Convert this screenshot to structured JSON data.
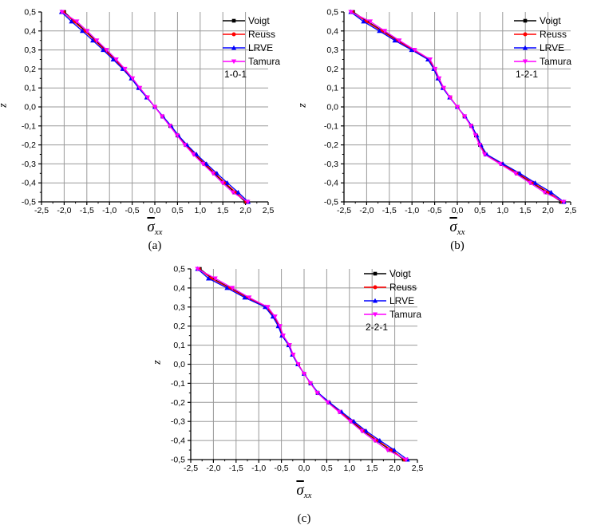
{
  "decimal_separator": ",",
  "colors": {
    "background": "#ffffff",
    "grid": "#9a9a9a",
    "axis": "#000000",
    "voigt": "#000000",
    "reuss": "#ff0000",
    "lrve": "#0000ff",
    "tamura": "#ff00ff"
  },
  "chart_data": [
    {
      "id": "a",
      "type": "line",
      "caption": "(a)",
      "group_label": "1-0-1",
      "xlabel": {
        "base": "σ",
        "overbar": true,
        "sub": "xx"
      },
      "ylabel": "z",
      "xlim": [
        -2.5,
        2.5
      ],
      "ylim": [
        -0.5,
        0.5
      ],
      "grid": true,
      "legend_position": "top-right",
      "x_tick_values": [
        -2.5,
        -2.0,
        -1.5,
        -1.0,
        -0.5,
        0.0,
        0.5,
        1.0,
        1.5,
        2.0,
        2.5
      ],
      "x_tick_labels": [
        "-2,5",
        "-2,0",
        "-1,5",
        "-1,0",
        "-0,5",
        "0,0",
        "0,5",
        "1,0",
        "1,5",
        "2,0",
        "2,5"
      ],
      "y_tick_values": [
        0.5,
        0.4,
        0.3,
        0.2,
        0.1,
        0.0,
        -0.1,
        -0.2,
        -0.3,
        -0.4,
        -0.5
      ],
      "y_tick_labels": [
        "0,5",
        "0,4",
        "0,3",
        "0,2",
        "0,1",
        "0,0",
        "-0,1",
        "-0,2",
        "-0,3",
        "-0,4",
        "-0,5"
      ],
      "x_minor_step": 0.25,
      "y_minor_step": 0.05,
      "z": [
        0.5,
        0.45,
        0.4,
        0.35,
        0.3,
        0.25,
        0.2,
        0.15,
        0.1,
        0.05,
        0.0,
        -0.05,
        -0.1,
        -0.15,
        -0.2,
        -0.25,
        -0.3,
        -0.35,
        -0.4,
        -0.45,
        -0.5
      ],
      "series": [
        {
          "name": "Voigt",
          "color": "#000000",
          "marker": "square",
          "x": [
            -2.0,
            -1.76,
            -1.53,
            -1.31,
            -1.09,
            -0.88,
            -0.68,
            -0.5,
            -0.34,
            -0.17,
            0.0,
            0.17,
            0.34,
            0.5,
            0.68,
            0.88,
            1.09,
            1.31,
            1.53,
            1.76,
            2.0
          ]
        },
        {
          "name": "Reuss",
          "color": "#ff0000",
          "marker": "circle",
          "x": [
            -2.02,
            -1.79,
            -1.55,
            -1.33,
            -1.11,
            -0.89,
            -0.69,
            -0.51,
            -0.35,
            -0.17,
            0.0,
            0.17,
            0.35,
            0.51,
            0.69,
            0.89,
            1.11,
            1.33,
            1.55,
            1.79,
            2.02
          ]
        },
        {
          "name": "LRVE",
          "color": "#0000ff",
          "marker": "triangle-up",
          "x": [
            -2.06,
            -1.84,
            -1.6,
            -1.37,
            -1.14,
            -0.92,
            -0.71,
            -0.52,
            -0.36,
            -0.18,
            0.0,
            0.18,
            0.36,
            0.52,
            0.71,
            0.92,
            1.14,
            1.37,
            1.6,
            1.84,
            2.06
          ]
        },
        {
          "name": "Tamura",
          "color": "#ff00ff",
          "marker": "triangle-down",
          "x": [
            -2.05,
            -1.72,
            -1.49,
            -1.28,
            -1.06,
            -0.85,
            -0.66,
            -0.49,
            -0.33,
            -0.16,
            0.0,
            0.16,
            0.33,
            0.49,
            0.66,
            0.85,
            1.06,
            1.28,
            1.49,
            1.72,
            2.05
          ]
        }
      ]
    },
    {
      "id": "b",
      "type": "line",
      "caption": "(b)",
      "group_label": "1-2-1",
      "xlabel": {
        "base": "σ",
        "overbar": true,
        "sub": "xx"
      },
      "ylabel": "z",
      "xlim": [
        -2.5,
        2.5
      ],
      "ylim": [
        -0.5,
        0.5
      ],
      "grid": true,
      "legend_position": "top-right",
      "x_tick_values": [
        -2.5,
        -2.0,
        -1.5,
        -1.0,
        -0.5,
        0.0,
        0.5,
        1.0,
        1.5,
        2.0,
        2.5
      ],
      "x_tick_labels": [
        "-2,5",
        "-2,0",
        "-1,5",
        "-1,0",
        "-0,5",
        "0,0",
        "0,5",
        "1,0",
        "1,5",
        "2,0",
        "2,5"
      ],
      "y_tick_values": [
        0.5,
        0.4,
        0.3,
        0.2,
        0.1,
        0.0,
        -0.1,
        -0.2,
        -0.3,
        -0.4,
        -0.5
      ],
      "y_tick_labels": [
        "0,5",
        "0,4",
        "0,3",
        "0,2",
        "0,1",
        "0,0",
        "-0,1",
        "-0,2",
        "-0,3",
        "-0,4",
        "-0,5"
      ],
      "x_minor_step": 0.25,
      "y_minor_step": 0.05,
      "z": [
        0.5,
        0.45,
        0.4,
        0.35,
        0.3,
        0.25,
        0.2,
        0.15,
        0.1,
        0.05,
        0.0,
        -0.05,
        -0.1,
        -0.15,
        -0.2,
        -0.25,
        -0.3,
        -0.35,
        -0.4,
        -0.45,
        -0.5
      ],
      "series": [
        {
          "name": "Voigt",
          "color": "#000000",
          "marker": "square",
          "x": [
            -2.3,
            -1.98,
            -1.65,
            -1.32,
            -0.97,
            -0.62,
            -0.5,
            -0.41,
            -0.31,
            -0.16,
            0.0,
            0.16,
            0.31,
            0.41,
            0.5,
            0.62,
            0.97,
            1.32,
            1.65,
            1.98,
            2.3
          ]
        },
        {
          "name": "Reuss",
          "color": "#ff0000",
          "marker": "circle",
          "x": [
            -2.32,
            -2.01,
            -1.67,
            -1.34,
            -0.98,
            -0.63,
            -0.51,
            -0.42,
            -0.31,
            -0.16,
            0.0,
            0.16,
            0.31,
            0.42,
            0.51,
            0.63,
            0.98,
            1.34,
            1.67,
            2.01,
            2.32
          ]
        },
        {
          "name": "LRVE",
          "color": "#0000ff",
          "marker": "triangle-up",
          "x": [
            -2.35,
            -2.07,
            -1.72,
            -1.38,
            -1.01,
            -0.65,
            -0.52,
            -0.43,
            -0.32,
            -0.17,
            0.0,
            0.17,
            0.32,
            0.43,
            0.52,
            0.65,
            1.01,
            1.38,
            1.72,
            2.07,
            2.35
          ]
        },
        {
          "name": "Tamura",
          "color": "#ff00ff",
          "marker": "triangle-down",
          "x": [
            -2.35,
            -1.92,
            -1.6,
            -1.28,
            -0.94,
            -0.6,
            -0.49,
            -0.4,
            -0.3,
            -0.16,
            0.0,
            0.16,
            0.3,
            0.4,
            0.49,
            0.6,
            0.94,
            1.28,
            1.6,
            1.92,
            2.35
          ]
        }
      ]
    },
    {
      "id": "c",
      "type": "line",
      "caption": "(c)",
      "group_label": "2-2-1",
      "xlabel": {
        "base": "σ",
        "overbar": true,
        "sub": "xx"
      },
      "ylabel": "z",
      "xlim": [
        -2.5,
        2.5
      ],
      "ylim": [
        -0.5,
        0.5
      ],
      "grid": true,
      "legend_position": "top-right",
      "x_tick_values": [
        -2.5,
        -2.0,
        -1.5,
        -1.0,
        -0.5,
        0.0,
        0.5,
        1.0,
        1.5,
        2.0,
        2.5
      ],
      "x_tick_labels": [
        "-2,5",
        "-2,0",
        "-1,5",
        "-1,0",
        "-0,5",
        "0,0",
        "0,5",
        "1,0",
        "1,5",
        "2,0",
        "2,5"
      ],
      "y_tick_values": [
        0.5,
        0.4,
        0.3,
        0.2,
        0.1,
        0.0,
        -0.1,
        -0.2,
        -0.3,
        -0.4,
        -0.5
      ],
      "y_tick_labels": [
        "0,5",
        "0,4",
        "0,3",
        "0,2",
        "0,1",
        "0,0",
        "-0,1",
        "-0,2",
        "-0,3",
        "-0,4",
        "-0,5"
      ],
      "x_minor_step": 0.25,
      "y_minor_step": 0.05,
      "z": [
        0.5,
        0.45,
        0.4,
        0.35,
        0.3,
        0.25,
        0.2,
        0.15,
        0.1,
        0.05,
        0.0,
        -0.05,
        -0.1,
        -0.15,
        -0.2,
        -0.25,
        -0.3,
        -0.35,
        -0.4,
        -0.45,
        -0.5
      ],
      "series": [
        {
          "name": "Voigt",
          "color": "#000000",
          "marker": "square",
          "x": [
            -2.3,
            -2.02,
            -1.63,
            -1.25,
            -0.82,
            -0.66,
            -0.55,
            -0.47,
            -0.33,
            -0.25,
            -0.13,
            0.0,
            0.14,
            0.3,
            0.54,
            0.79,
            1.05,
            1.31,
            1.6,
            1.9,
            2.2
          ]
        },
        {
          "name": "Reuss",
          "color": "#ff0000",
          "marker": "circle",
          "x": [
            -2.32,
            -2.05,
            -1.65,
            -1.27,
            -0.83,
            -0.67,
            -0.56,
            -0.48,
            -0.34,
            -0.25,
            -0.13,
            0.0,
            0.14,
            0.3,
            0.55,
            0.8,
            1.07,
            1.33,
            1.62,
            1.93,
            2.22
          ]
        },
        {
          "name": "LRVE",
          "color": "#0000ff",
          "marker": "triangle-up",
          "x": [
            -2.35,
            -2.11,
            -1.7,
            -1.31,
            -0.86,
            -0.69,
            -0.57,
            -0.49,
            -0.34,
            -0.26,
            -0.14,
            0.0,
            0.15,
            0.31,
            0.56,
            0.83,
            1.1,
            1.37,
            1.67,
            1.99,
            2.28
          ]
        },
        {
          "name": "Tamura",
          "color": "#ff00ff",
          "marker": "triangle-down",
          "x": [
            -2.35,
            -1.96,
            -1.58,
            -1.21,
            -0.8,
            -0.64,
            -0.53,
            -0.46,
            -0.32,
            -0.24,
            -0.13,
            0.0,
            0.14,
            0.29,
            0.52,
            0.77,
            1.02,
            1.27,
            1.55,
            1.84,
            2.25
          ]
        }
      ]
    }
  ]
}
